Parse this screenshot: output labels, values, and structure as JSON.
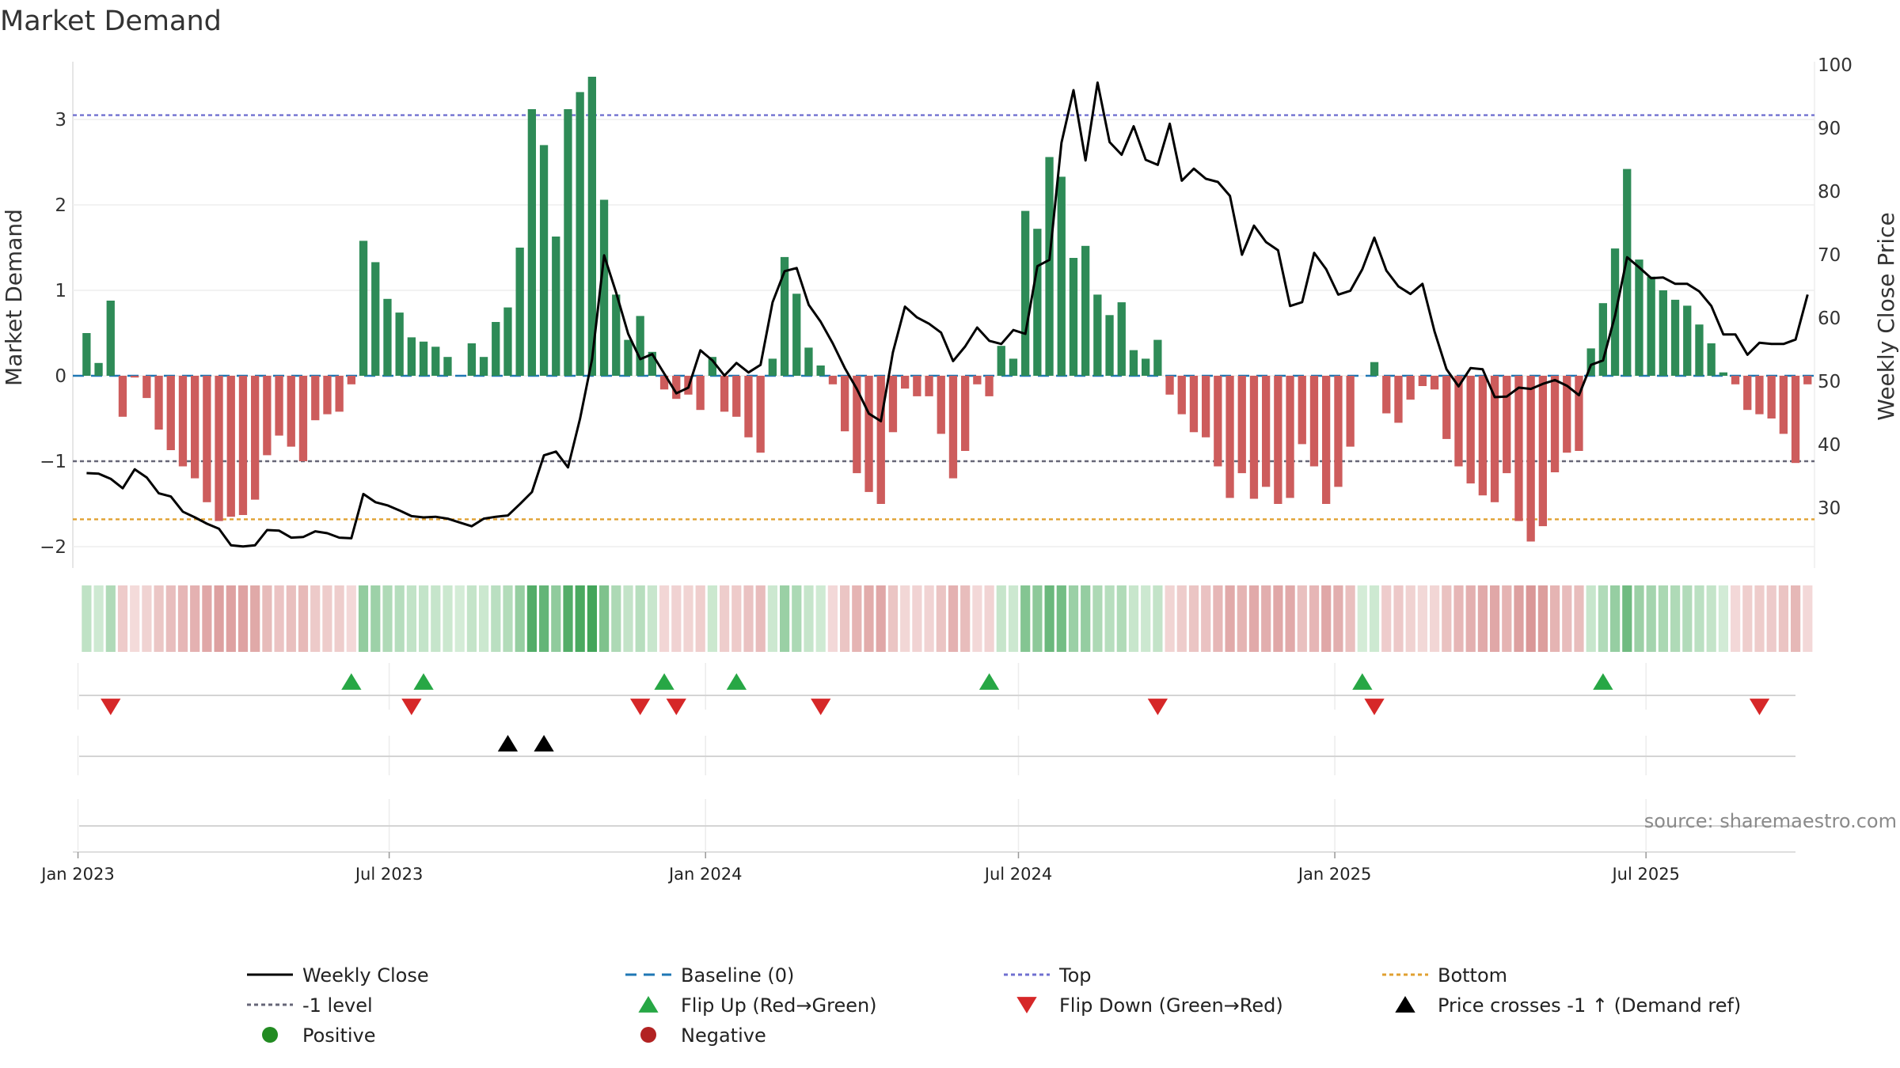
{
  "chart_data": {
    "type": "bar",
    "title": "Market Demand",
    "ylabel": "Market Demand",
    "y2label": "Weekly Close Price",
    "ylim": [
      -2.25,
      3.75
    ],
    "y2lim": [
      20.5,
      101.5
    ],
    "yticks": [
      -2,
      -1,
      0,
      1,
      2,
      3
    ],
    "y2ticks": [
      30,
      40,
      50,
      60,
      70,
      80,
      90,
      100
    ],
    "x_start": "2023-01-06",
    "x_step_days": 7,
    "x_range": [
      "2022-12-29",
      "2025-10-07"
    ],
    "x_ticks": [
      {
        "date": "2023-01-01",
        "label": "Jan 2023"
      },
      {
        "date": "2023-07-01",
        "label": "Jul 2023"
      },
      {
        "date": "2024-01-01",
        "label": "Jan 2024"
      },
      {
        "date": "2024-07-01",
        "label": "Jul 2024"
      },
      {
        "date": "2025-01-01",
        "label": "Jan 2025"
      },
      {
        "date": "2025-07-01",
        "label": "Jul 2025"
      }
    ],
    "reference_lines": {
      "top": 3.05,
      "minus_one": -1,
      "bottom": -1.68,
      "baseline": 0
    },
    "demand": [
      0.5,
      0.15,
      0.88,
      -0.48,
      -0.02,
      -0.26,
      -0.63,
      -0.87,
      -1.06,
      -1.2,
      -1.48,
      -1.7,
      -1.65,
      -1.63,
      -1.45,
      -0.93,
      -0.7,
      -0.83,
      -1.0,
      -0.52,
      -0.45,
      -0.42,
      -0.1,
      1.58,
      1.33,
      0.9,
      0.74,
      0.45,
      0.4,
      0.34,
      0.22,
      0.0,
      0.38,
      0.22,
      0.63,
      0.8,
      1.5,
      3.12,
      2.7,
      1.63,
      3.12,
      3.32,
      3.5,
      2.06,
      0.95,
      0.42,
      0.7,
      0.28,
      -0.16,
      -0.27,
      -0.22,
      -0.4,
      0.22,
      -0.42,
      -0.48,
      -0.72,
      -0.9,
      0.2,
      1.39,
      0.96,
      0.33,
      0.12,
      -0.1,
      -0.65,
      -1.14,
      -1.36,
      -1.5,
      -0.66,
      -0.15,
      -0.24,
      -0.24,
      -0.68,
      -1.2,
      -0.88,
      -0.1,
      -0.24,
      0.35,
      0.2,
      1.93,
      1.72,
      2.56,
      2.33,
      1.38,
      1.52,
      0.95,
      0.71,
      0.86,
      0.3,
      0.2,
      0.42,
      -0.22,
      -0.45,
      -0.66,
      -0.72,
      -1.06,
      -1.43,
      -1.14,
      -1.44,
      -1.3,
      -1.5,
      -1.43,
      -0.8,
      -1.06,
      -1.5,
      -1.3,
      -0.83,
      0.0,
      0.16,
      -0.44,
      -0.55,
      -0.28,
      -0.12,
      -0.16,
      -0.74,
      -1.06,
      -1.26,
      -1.4,
      -1.48,
      -1.14,
      -1.7,
      -1.94,
      -1.76,
      -1.13,
      -0.9,
      -0.88,
      0.32,
      0.85,
      1.49,
      2.42,
      1.36,
      1.16,
      1.0,
      0.89,
      0.82,
      0.6,
      0.38,
      0.04,
      -0.1,
      -0.4,
      -0.45,
      -0.5,
      -0.68,
      -1.02,
      -0.1
    ],
    "close": [
      35.5,
      35.4,
      34.6,
      33.1,
      36.1,
      34.8,
      32.3,
      31.8,
      29.4,
      28.5,
      27.5,
      26.7,
      24.1,
      23.9,
      24.1,
      26.5,
      26.4,
      25.3,
      25.4,
      26.3,
      26.0,
      25.3,
      25.2,
      32.2,
      30.9,
      30.4,
      29.6,
      28.7,
      28.5,
      28.6,
      28.3,
      27.7,
      27.1,
      28.3,
      28.6,
      28.8,
      30.6,
      32.5,
      38.3,
      38.9,
      36.4,
      44.1,
      53.5,
      69.9,
      64.0,
      57.5,
      53.5,
      54.3,
      51.2,
      48.1,
      49.0,
      54.9,
      53.3,
      50.9,
      52.9,
      51.4,
      52.6,
      62.5,
      67.4,
      67.9,
      62.1,
      59.4,
      56.0,
      52.1,
      48.8,
      44.9,
      43.7,
      54.6,
      61.8,
      60.1,
      59.1,
      57.7,
      53.2,
      55.5,
      58.5,
      56.4,
      55.9,
      58.1,
      57.5,
      68.2,
      69.2,
      87.7,
      96.0,
      84.9,
      97.2,
      87.8,
      85.8,
      90.3,
      85.0,
      84.2,
      90.7,
      81.7,
      83.6,
      82.0,
      81.5,
      79.3,
      70.0,
      74.6,
      72.0,
      70.7,
      61.9,
      62.5,
      70.3,
      67.7,
      63.7,
      64.3,
      67.7,
      72.7,
      67.5,
      65.0,
      63.8,
      65.4,
      57.9,
      51.9,
      49.2,
      52.1,
      51.9,
      47.5,
      47.6,
      49.0,
      48.8,
      49.6,
      50.2,
      49.3,
      47.8,
      52.6,
      53.3,
      60.4,
      69.6,
      68.0,
      66.3,
      66.4,
      65.4,
      65.4,
      64.2,
      61.9,
      57.4,
      57.4,
      54.2,
      56.1,
      55.9,
      55.9,
      56.6,
      63.7
    ],
    "flip_up": [
      "2023-06-09",
      "2023-07-21",
      "2023-12-08",
      "2024-01-19",
      "2024-06-14",
      "2025-01-17",
      "2025-06-06"
    ],
    "flip_down": [
      "2023-01-20",
      "2023-07-14",
      "2023-11-24",
      "2023-12-15",
      "2024-03-08",
      "2024-09-20",
      "2025-01-24",
      "2025-09-05"
    ],
    "price_cross": [
      "2023-09-08",
      "2023-09-29"
    ],
    "colors": {
      "positive_bar": "#2e8b57",
      "negative_bar": "#cd5c5c",
      "close_line": "#000000",
      "baseline": "#1f77b4",
      "top_line": "#7070d0",
      "minus_one_line": "#666677",
      "bottom_line": "#e0a030",
      "flip_up": "#27a745",
      "flip_down": "#d62728",
      "cross": "#000000",
      "positive_dot": "#228b22",
      "negative_dot": "#b22222"
    },
    "legend": [
      {
        "key": "close",
        "label": "Weekly Close"
      },
      {
        "key": "baseline",
        "label": "Baseline (0)"
      },
      {
        "key": "top",
        "label": "Top"
      },
      {
        "key": "bottom",
        "label": "Bottom"
      },
      {
        "key": "minus_one",
        "label": "-1 level"
      },
      {
        "key": "flip_up",
        "label": "Flip Up (Red→Green)"
      },
      {
        "key": "flip_down",
        "label": "Flip Down (Green→Red)"
      },
      {
        "key": "cross",
        "label": "Price crosses -1 ↑ (Demand ref)"
      },
      {
        "key": "positive",
        "label": "Positive"
      },
      {
        "key": "negative",
        "label": "Negative"
      }
    ],
    "source": "source: sharemaestro.com"
  }
}
